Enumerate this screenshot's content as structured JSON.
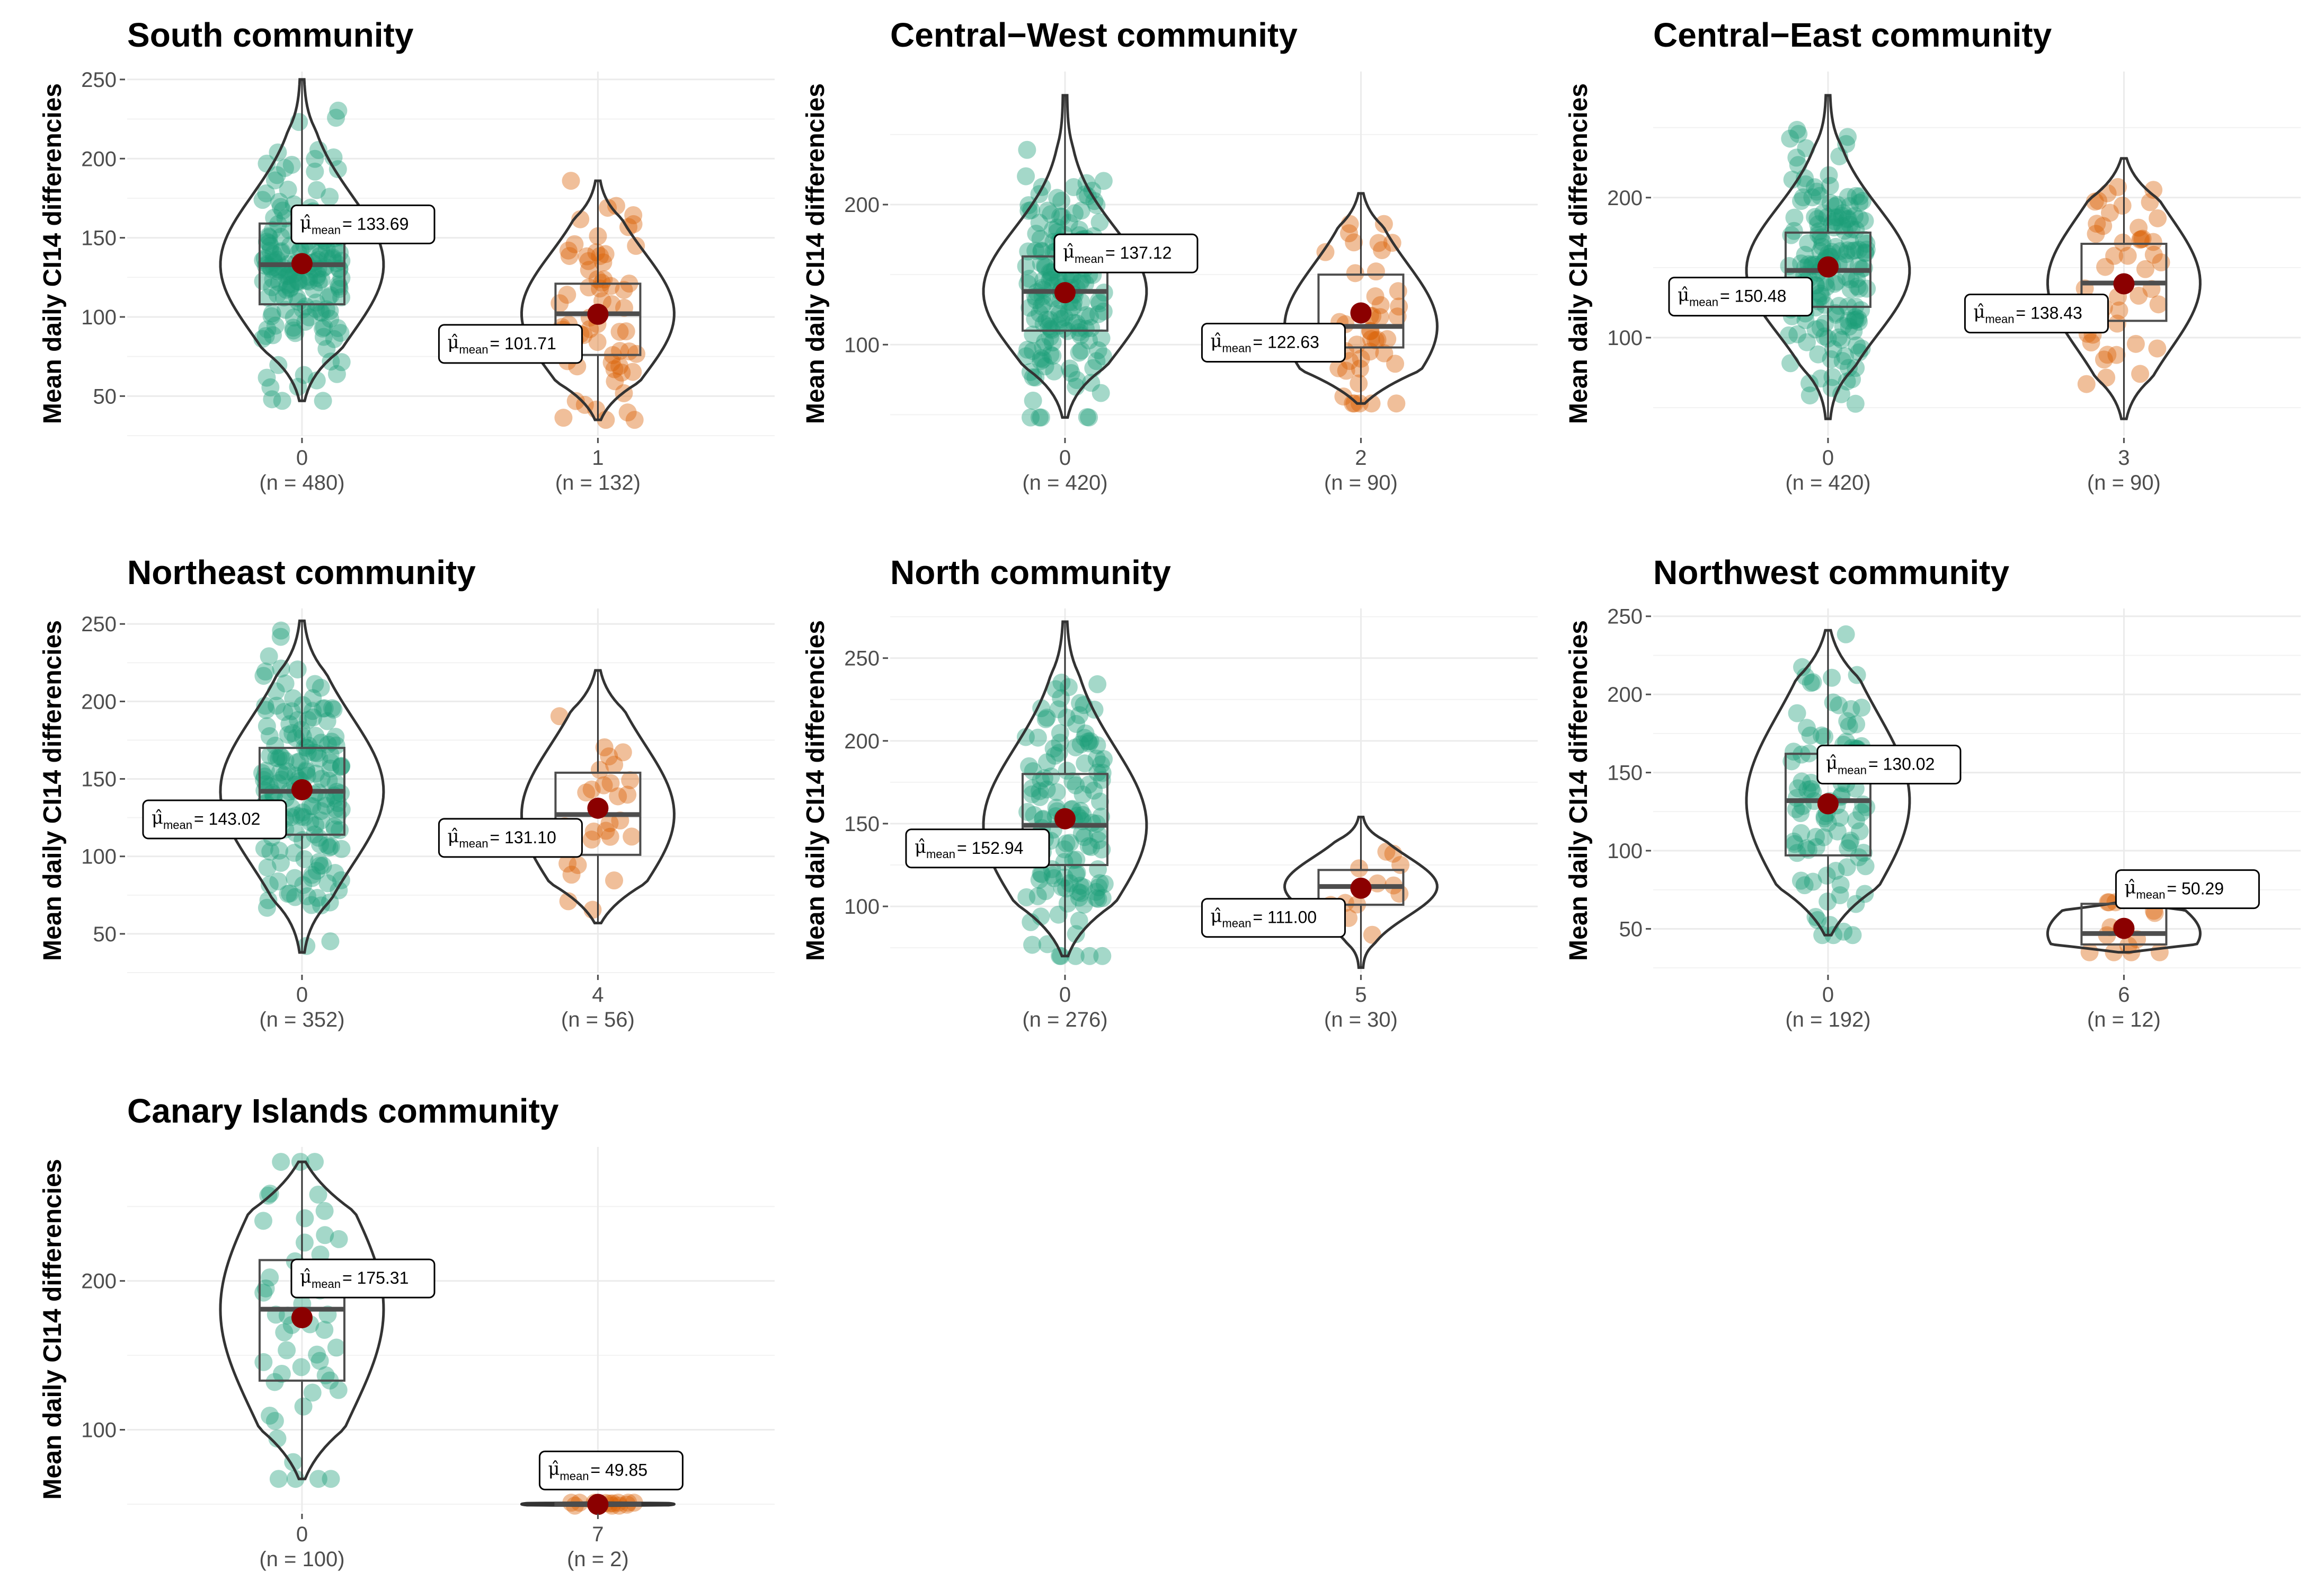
{
  "colors": {
    "group0": "#1b9e77",
    "group_other": "#d95f02",
    "mean_point": "#8b0000",
    "grid": "#ebebeb",
    "outline": "#333333"
  },
  "chart_data": [
    {
      "type": "violin-box",
      "title": "South community",
      "ylabel": "Mean daily CI14 differencies",
      "ylim": [
        25,
        255
      ],
      "yticks": [
        50,
        100,
        150,
        200,
        250
      ],
      "groups": [
        {
          "label": "0",
          "n_label": "(n = 480)",
          "mean": 133.69,
          "mean_label": "= 133.69",
          "q1": 108,
          "median": 133,
          "q3": 159,
          "min": 47,
          "max": 250
        },
        {
          "label": "1",
          "n_label": "(n = 132)",
          "mean": 101.71,
          "mean_label": "= 101.71",
          "q1": 76,
          "median": 102,
          "q3": 121,
          "min": 35,
          "max": 186
        }
      ]
    },
    {
      "type": "violin-box",
      "title": "Central−West community",
      "ylabel": "Mean daily CI14 differencies",
      "ylim": [
        35,
        295
      ],
      "yticks": [
        100,
        200
      ],
      "groups": [
        {
          "label": "0",
          "n_label": "(n = 420)",
          "mean": 137.12,
          "mean_label": "= 137.12",
          "q1": 110,
          "median": 138,
          "q3": 163,
          "min": 48,
          "max": 278
        },
        {
          "label": "2",
          "n_label": "(n = 90)",
          "mean": 122.63,
          "mean_label": "= 122.63",
          "q1": 98,
          "median": 113,
          "q3": 150,
          "min": 58,
          "max": 208
        }
      ]
    },
    {
      "type": "violin-box",
      "title": "Central−East community",
      "ylabel": "Mean daily CI14 differencies",
      "ylim": [
        30,
        290
      ],
      "yticks": [
        100,
        200
      ],
      "groups": [
        {
          "label": "0",
          "n_label": "(n = 420)",
          "mean": 150.48,
          "mean_label": "= 150.48",
          "q1": 122,
          "median": 148,
          "q3": 175,
          "min": 42,
          "max": 273
        },
        {
          "label": "3",
          "n_label": "(n = 90)",
          "mean": 138.43,
          "mean_label": "= 138.43",
          "q1": 112,
          "median": 139,
          "q3": 167,
          "min": 42,
          "max": 228
        }
      ]
    },
    {
      "type": "violin-box",
      "title": "Northeast community",
      "ylabel": "Mean daily CI14 differencies",
      "ylim": [
        25,
        260
      ],
      "yticks": [
        50,
        100,
        150,
        200,
        250
      ],
      "groups": [
        {
          "label": "0",
          "n_label": "(n = 352)",
          "mean": 143.02,
          "mean_label": "= 143.02",
          "q1": 114,
          "median": 142,
          "q3": 170,
          "min": 38,
          "max": 252
        },
        {
          "label": "4",
          "n_label": "(n = 56)",
          "mean": 131.1,
          "mean_label": "= 131.10",
          "q1": 101,
          "median": 127,
          "q3": 154,
          "min": 57,
          "max": 220
        }
      ]
    },
    {
      "type": "violin-box",
      "title": "North community",
      "ylabel": "Mean daily CI14 differencies",
      "ylim": [
        60,
        280
      ],
      "yticks": [
        100,
        150,
        200,
        250
      ],
      "groups": [
        {
          "label": "0",
          "n_label": "(n = 276)",
          "mean": 152.94,
          "mean_label": "= 152.94",
          "q1": 125,
          "median": 149,
          "q3": 180,
          "min": 70,
          "max": 272
        },
        {
          "label": "5",
          "n_label": "(n = 30)",
          "mean": 111.0,
          "mean_label": "= 111.00",
          "q1": 101,
          "median": 112,
          "q3": 122,
          "min": 63,
          "max": 154
        }
      ]
    },
    {
      "type": "violin-box",
      "title": "Northwest community",
      "ylabel": "Mean daily CI14 differencies",
      "ylim": [
        22,
        255
      ],
      "yticks": [
        50,
        100,
        150,
        200,
        250
      ],
      "groups": [
        {
          "label": "0",
          "n_label": "(n = 192)",
          "mean": 130.02,
          "mean_label": "= 130.02",
          "q1": 97,
          "median": 132,
          "q3": 162,
          "min": 46,
          "max": 241
        },
        {
          "label": "6",
          "n_label": "(n = 12)",
          "mean": 50.29,
          "mean_label": "= 50.29",
          "q1": 40,
          "median": 47,
          "q3": 66,
          "min": 35,
          "max": 67
        }
      ]
    },
    {
      "type": "violin-box",
      "title": "Canary Islands community",
      "ylabel": "Mean daily CI14 differencies",
      "ylim": [
        45,
        290
      ],
      "yticks": [
        100,
        200
      ],
      "groups": [
        {
          "label": "0",
          "n_label": "(n = 100)",
          "mean": 175.31,
          "mean_label": "= 175.31",
          "q1": 133,
          "median": 181,
          "q3": 214,
          "min": 67,
          "max": 280
        },
        {
          "label": "7",
          "n_label": "(n = 2)",
          "mean": 49.85,
          "mean_label": "= 49.85",
          "q1": 49,
          "median": 50,
          "q3": 51,
          "min": 49,
          "max": 51
        }
      ]
    }
  ]
}
